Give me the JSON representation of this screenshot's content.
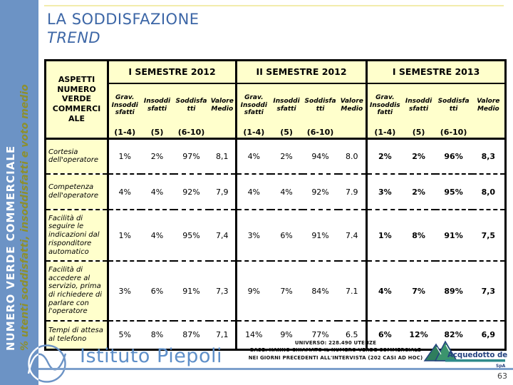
{
  "sidebar": {
    "title": "NUMERO VERDE COMMERCIALE",
    "subtitle": "% utenti soddisfatti, insoddisfatti e voto medio"
  },
  "header": {
    "title_line1": "LA SODDISFAZIONE",
    "title_line2": "TREND"
  },
  "table": {
    "corner_label": "ASPETTI NUMERO VERDE COMMERCIALE",
    "groups": [
      {
        "label": "I SEMESTRE 2012",
        "bold": false,
        "columns": [
          {
            "name": "Grav. Insoddisfatti",
            "range": "(1-4)"
          },
          {
            "name": "Insoddisfatti",
            "range": "(5)"
          },
          {
            "name": "Soddisfatti",
            "range": "(6-10)"
          },
          {
            "name": "Valore Medio",
            "range": ""
          }
        ]
      },
      {
        "label": "II SEMESTRE 2012",
        "bold": false,
        "columns": [
          {
            "name": "Grav. Insoddisfatti",
            "range": "(1-4)"
          },
          {
            "name": "Insoddisfatti",
            "range": "(5)"
          },
          {
            "name": "Soddisfatti",
            "range": "(6-10)"
          },
          {
            "name": "Valore Medio",
            "range": ""
          }
        ]
      },
      {
        "label": "I SEMESTRE 2013",
        "bold": true,
        "columns": [
          {
            "name": "Grav. Insoddisfatti",
            "range": "(1-4)"
          },
          {
            "name": "Insoddisfatti",
            "range": "(5)"
          },
          {
            "name": "Soddisfatti",
            "range": "(6-10)"
          },
          {
            "name": "Valore Medio",
            "range": ""
          }
        ]
      }
    ],
    "rows": [
      {
        "label": "Cortesia dell'operatore",
        "values": [
          "1%",
          "2%",
          "97%",
          "8,1",
          "4%",
          "2%",
          "94%",
          "8.0",
          "2%",
          "2%",
          "96%",
          "8,3"
        ]
      },
      {
        "label": "Competenza dell'operatore",
        "values": [
          "4%",
          "4%",
          "92%",
          "7,9",
          "4%",
          "4%",
          "92%",
          "7.9",
          "3%",
          "2%",
          "95%",
          "8,0"
        ]
      },
      {
        "label": "Facilità di seguire le indicazioni dal risponditore automatico",
        "values": [
          "1%",
          "4%",
          "95%",
          "7,4",
          "3%",
          "6%",
          "91%",
          "7.4",
          "1%",
          "8%",
          "91%",
          "7,5"
        ]
      },
      {
        "label": "Facilità di accedere al servizio, prima di richiedere di parlare con l'operatore",
        "values": [
          "3%",
          "6%",
          "91%",
          "7,3",
          "9%",
          "7%",
          "84%",
          "7.1",
          "4%",
          "7%",
          "89%",
          "7,3"
        ]
      },
      {
        "label": "Tempi di attesa al telefono",
        "values": [
          "5%",
          "8%",
          "87%",
          "7,1",
          "14%",
          "9%",
          "77%",
          "6.5",
          "6%",
          "12%",
          "82%",
          "6,9"
        ]
      }
    ]
  },
  "footer": {
    "institute": "Istituto Piepoli",
    "note_lines": [
      "UNIVERSO: 228.490 UTENZE",
      "BASE: HANNO CHIAMATO IL NUMERO VERDE COMMERCIALE",
      "NEI GIORNI PRECEDENTI ALL'INTERVISTA (202 CASI AD HOC)"
    ],
    "client_logo_text": "Acquedotto del Fiora",
    "client_logo_sub": "SpA",
    "page_number": "63"
  },
  "colors": {
    "strip_blue": "#6C93C5",
    "pale_yellow": "#FFFFCC",
    "title_blue": "#3C66A6",
    "olive": "#8D8F2D",
    "piepoli_blue": "#5E8FC9",
    "rule_blue": "#7DA0CC"
  }
}
